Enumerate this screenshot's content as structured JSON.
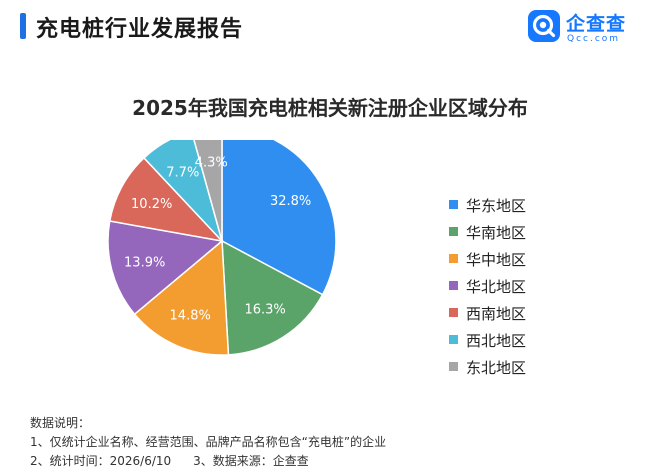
{
  "header": {
    "title": "充电桩行业发展报告",
    "accent_color": "#1f6fe5"
  },
  "logo": {
    "name": "企查查",
    "domain": "Qcc.com",
    "icon": "qcc-logo-icon",
    "color": "#1677ff"
  },
  "chart_data": {
    "type": "pie",
    "title": "2025年我国充电桩相关新注册企业区域分布",
    "start_angle_deg": 0,
    "direction": "clockwise",
    "unit": "%",
    "legend_position": "right",
    "slices": [
      {
        "label": "华东地区",
        "value": 32.8,
        "display": "32.8%",
        "color": "#2f8ef0"
      },
      {
        "label": "华南地区",
        "value": 16.3,
        "display": "16.3%",
        "color": "#5aa469"
      },
      {
        "label": "华中地区",
        "value": 14.8,
        "display": "14.8%",
        "color": "#f39c2f"
      },
      {
        "label": "华北地区",
        "value": 13.9,
        "display": "13.9%",
        "color": "#9467bd"
      },
      {
        "label": "西南地区",
        "value": 10.2,
        "display": "10.2%",
        "color": "#d9675a"
      },
      {
        "label": "西北地区",
        "value": 7.7,
        "display": "7.7%",
        "color": "#4cbcd8"
      },
      {
        "label": "东北地区",
        "value": 4.3,
        "display": "4.3%",
        "color": "#a6a6a6"
      }
    ]
  },
  "notes": {
    "heading": "数据说明：",
    "line1": "1、仅统计企业名称、经营范围、品牌产品名称包含“充电桩”的企业",
    "line2a": "2、统计时间：2026/6/10",
    "line2b": "3、数据来源：企查查"
  }
}
